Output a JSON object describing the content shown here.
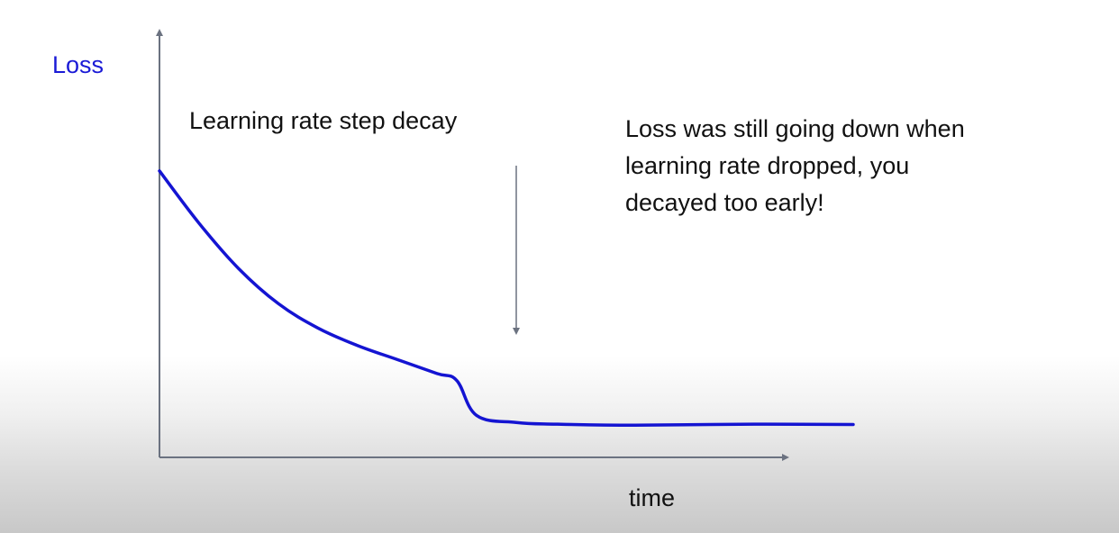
{
  "chart_data": {
    "type": "line",
    "title": "",
    "ylabel": "Loss",
    "xlabel": "time",
    "grid": false,
    "colors": {
      "series": "#1414d2",
      "axes": "#6b7280",
      "annotation_arrow": "#6b7280",
      "ylabel": "#1a1ad6"
    },
    "series": [
      {
        "x": [
          0,
          10,
          20,
          30,
          40,
          50,
          60,
          70,
          75,
          80,
          90,
          100,
          120,
          150,
          175
        ],
        "y": [
          0.82,
          0.67,
          0.54,
          0.44,
          0.37,
          0.32,
          0.28,
          0.24,
          0.22,
          0.12,
          0.1,
          0.095,
          0.092,
          0.095,
          0.094
        ]
      }
    ],
    "annotations": [
      {
        "text": "Learning rate step decay",
        "x": 75,
        "arrow": true
      },
      {
        "lines": [
          "Loss was still going down when",
          "learning rate dropped, you",
          "decayed too early!"
        ]
      }
    ]
  }
}
